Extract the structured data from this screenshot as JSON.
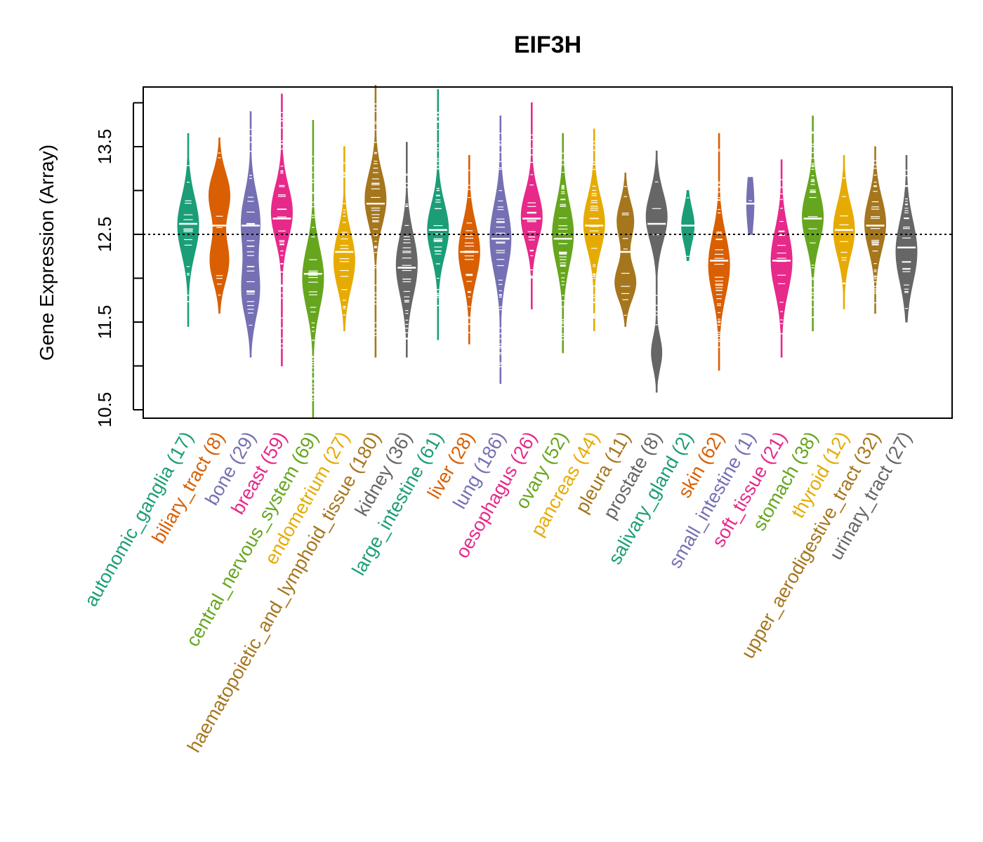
{
  "chart_data": {
    "type": "violin",
    "title": "EIF3H",
    "xlabel": "",
    "ylabel": "Gene Expression (Array)",
    "ylim": [
      10.4,
      14.2
    ],
    "yticks": [
      10.5,
      11.5,
      12.5,
      13.5
    ],
    "reference_line": 12.5,
    "palette": [
      "#1b9e77",
      "#d95f02",
      "#7570b3",
      "#e7298a",
      "#66a61e",
      "#e6ab02",
      "#a6761d",
      "#666666"
    ],
    "categories": [
      {
        "name": "autonomic_ganglia",
        "n": "17",
        "label": "autonomic_ganglia (17)",
        "color": "#1b9e77",
        "min": 11.45,
        "max": 13.65,
        "median": 12.62,
        "modes": [
          [
            12.6,
            0.32,
            1.0
          ]
        ]
      },
      {
        "name": "biliary_tract",
        "n": "8",
        "label": "biliary_tract (8)",
        "color": "#d95f02",
        "min": 11.6,
        "max": 13.6,
        "median": 12.6,
        "modes": [
          [
            12.95,
            0.25,
            1.0
          ],
          [
            12.2,
            0.25,
            0.9
          ]
        ]
      },
      {
        "name": "bone",
        "n": "29",
        "label": "bone (29)",
        "color": "#7570b3",
        "min": 11.1,
        "max": 13.9,
        "median": 12.6,
        "modes": [
          [
            12.65,
            0.32,
            0.9
          ],
          [
            11.85,
            0.3,
            0.85
          ]
        ]
      },
      {
        "name": "breast",
        "n": "59",
        "label": "breast (59)",
        "color": "#e7298a",
        "min": 11.0,
        "max": 14.1,
        "median": 12.68,
        "modes": [
          [
            12.75,
            0.3,
            1.0
          ]
        ]
      },
      {
        "name": "central_nervous_system",
        "n": "69",
        "label": "central_nervous_system (69)",
        "color": "#66a61e",
        "min": 10.4,
        "max": 13.8,
        "median": 12.05,
        "modes": [
          [
            12.0,
            0.35,
            1.0
          ]
        ]
      },
      {
        "name": "endometrium",
        "n": "27",
        "label": "endometrium (27)",
        "color": "#e6ab02",
        "min": 11.4,
        "max": 13.5,
        "median": 12.3,
        "modes": [
          [
            12.2,
            0.32,
            1.0
          ]
        ]
      },
      {
        "name": "haematopoietic_and_lymphoid_tissue",
        "n": "180",
        "label": "haematopoietic_and_lymphoid_tissue (180)",
        "color": "#a6761d",
        "min": 11.1,
        "max": 14.2,
        "median": 12.85,
        "modes": [
          [
            12.9,
            0.3,
            1.0
          ]
        ]
      },
      {
        "name": "kidney",
        "n": "36",
        "label": "kidney (36)",
        "color": "#666666",
        "min": 11.1,
        "max": 13.55,
        "median": 12.12,
        "modes": [
          [
            12.15,
            0.35,
            1.0
          ]
        ]
      },
      {
        "name": "large_intestine",
        "n": "61",
        "label": "large_intestine (61)",
        "color": "#1b9e77",
        "min": 11.3,
        "max": 14.15,
        "median": 12.55,
        "modes": [
          [
            12.55,
            0.3,
            1.0
          ]
        ]
      },
      {
        "name": "liver",
        "n": "28",
        "label": "liver (28)",
        "color": "#d95f02",
        "min": 11.25,
        "max": 13.4,
        "median": 12.3,
        "modes": [
          [
            12.3,
            0.32,
            1.0
          ]
        ]
      },
      {
        "name": "lung",
        "n": "186",
        "label": "lung (186)",
        "color": "#7570b3",
        "min": 10.8,
        "max": 13.85,
        "median": 12.45,
        "modes": [
          [
            12.45,
            0.38,
            1.0
          ]
        ]
      },
      {
        "name": "oesophagus",
        "n": "26",
        "label": "oesophagus (26)",
        "color": "#e7298a",
        "min": 11.65,
        "max": 14.0,
        "median": 12.68,
        "modes": [
          [
            12.7,
            0.28,
            1.0
          ]
        ]
      },
      {
        "name": "ovary",
        "n": "52",
        "label": "ovary (52)",
        "color": "#66a61e",
        "min": 11.15,
        "max": 13.65,
        "median": 12.45,
        "modes": [
          [
            12.5,
            0.35,
            1.0
          ]
        ]
      },
      {
        "name": "pancreas",
        "n": "44",
        "label": "pancreas (44)",
        "color": "#e6ab02",
        "min": 11.4,
        "max": 13.7,
        "median": 12.6,
        "modes": [
          [
            12.62,
            0.3,
            1.0
          ]
        ]
      },
      {
        "name": "pleura",
        "n": "11",
        "label": "pleura (11)",
        "color": "#a6761d",
        "min": 11.45,
        "max": 13.2,
        "median": 12.3,
        "modes": [
          [
            12.65,
            0.22,
            0.8
          ],
          [
            11.95,
            0.2,
            1.0
          ]
        ]
      },
      {
        "name": "prostate",
        "n": "8",
        "label": "prostate (8)",
        "color": "#666666",
        "min": 10.7,
        "max": 13.45,
        "median": 12.62,
        "modes": [
          [
            12.7,
            0.28,
            1.0
          ],
          [
            11.15,
            0.18,
            0.5
          ]
        ]
      },
      {
        "name": "salivary_gland",
        "n": "2",
        "label": "salivary_gland (2)",
        "color": "#1b9e77",
        "min": 12.2,
        "max": 13.0,
        "median": 12.6,
        "modes": [
          [
            12.6,
            0.2,
            0.6
          ]
        ]
      },
      {
        "name": "skin",
        "n": "62",
        "label": "skin (62)",
        "color": "#d95f02",
        "min": 10.95,
        "max": 13.65,
        "median": 12.2,
        "modes": [
          [
            12.15,
            0.35,
            1.0
          ]
        ]
      },
      {
        "name": "small_intestine",
        "n": "1",
        "label": "small_intestine (1)",
        "color": "#7570b3",
        "min": 12.5,
        "max": 13.15,
        "median": 12.85,
        "modes": [
          [
            12.85,
            0.3,
            0.35
          ]
        ]
      },
      {
        "name": "soft_tissue",
        "n": "21",
        "label": "soft_tissue (21)",
        "color": "#e7298a",
        "min": 11.1,
        "max": 13.35,
        "median": 12.2,
        "modes": [
          [
            12.2,
            0.35,
            1.0
          ]
        ]
      },
      {
        "name": "stomach",
        "n": "38",
        "label": "stomach (38)",
        "color": "#66a61e",
        "min": 11.4,
        "max": 13.85,
        "median": 12.68,
        "modes": [
          [
            12.7,
            0.3,
            1.0
          ]
        ]
      },
      {
        "name": "thyroid",
        "n": "12",
        "label": "thyroid (12)",
        "color": "#e6ab02",
        "min": 11.65,
        "max": 13.4,
        "median": 12.55,
        "modes": [
          [
            12.55,
            0.3,
            1.0
          ]
        ]
      },
      {
        "name": "upper_aerodigestive_tract",
        "n": "32",
        "label": "upper_aerodigestive_tract (32)",
        "color": "#a6761d",
        "min": 11.6,
        "max": 13.5,
        "median": 12.6,
        "modes": [
          [
            12.62,
            0.3,
            1.0
          ]
        ]
      },
      {
        "name": "urinary_tract",
        "n": "27",
        "label": "urinary_tract (27)",
        "color": "#666666",
        "min": 11.5,
        "max": 13.4,
        "median": 12.35,
        "modes": [
          [
            12.3,
            0.35,
            1.0
          ]
        ]
      }
    ]
  }
}
